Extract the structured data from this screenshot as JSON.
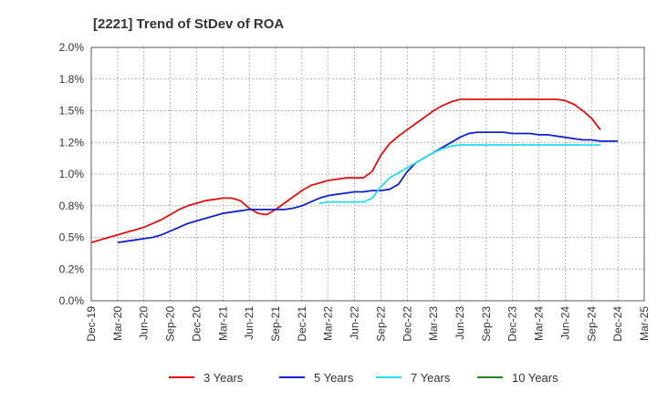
{
  "chart_data": {
    "type": "line",
    "title": "[2221]  Trend of StDev of ROA",
    "xlabel": "",
    "ylabel": "",
    "x_ticks": [
      "Dec-19",
      "Mar-20",
      "Jun-20",
      "Sep-20",
      "Dec-20",
      "Mar-21",
      "Jun-21",
      "Sep-21",
      "Dec-21",
      "Mar-22",
      "Jun-22",
      "Sep-22",
      "Dec-22",
      "Mar-23",
      "Jun-23",
      "Sep-23",
      "Dec-23",
      "Mar-24",
      "Jun-24",
      "Sep-24",
      "Dec-24",
      "Mar-25"
    ],
    "y_ticks": [
      "0.0%",
      "0.2%",
      "0.5%",
      "0.8%",
      "1.0%",
      "1.2%",
      "1.5%",
      "1.8%",
      "2.0%"
    ],
    "ylim": [
      0,
      2.0
    ],
    "grid": true,
    "legend_position": "bottom",
    "series": [
      {
        "name": "3 Years",
        "color": "#dd1111",
        "start_index": 0,
        "values": [
          0.46,
          0.48,
          0.5,
          0.52,
          0.54,
          0.56,
          0.58,
          0.61,
          0.64,
          0.68,
          0.72,
          0.75,
          0.77,
          0.79,
          0.8,
          0.81,
          0.81,
          0.79,
          0.73,
          0.69,
          0.68,
          0.72,
          0.77,
          0.82,
          0.87,
          0.91,
          0.93,
          0.95,
          0.96,
          0.97,
          0.97,
          0.97,
          1.02,
          1.15,
          1.24,
          1.3,
          1.35,
          1.4,
          1.45,
          1.5,
          1.54,
          1.57,
          1.59,
          1.59,
          1.59,
          1.59,
          1.59,
          1.59,
          1.59,
          1.59,
          1.59,
          1.59,
          1.59,
          1.59,
          1.58,
          1.55,
          1.5,
          1.44,
          1.35
        ]
      },
      {
        "name": "5 Years",
        "color": "#1122cc",
        "start_index": 3,
        "values": [
          0.46,
          0.47,
          0.48,
          0.49,
          0.5,
          0.52,
          0.55,
          0.58,
          0.61,
          0.63,
          0.65,
          0.67,
          0.69,
          0.7,
          0.71,
          0.72,
          0.72,
          0.72,
          0.72,
          0.72,
          0.73,
          0.75,
          0.78,
          0.81,
          0.83,
          0.84,
          0.85,
          0.86,
          0.86,
          0.87,
          0.87,
          0.88,
          0.92,
          1.02,
          1.09,
          1.13,
          1.17,
          1.21,
          1.25,
          1.29,
          1.32,
          1.33,
          1.33,
          1.33,
          1.33,
          1.32,
          1.32,
          1.32,
          1.31,
          1.31,
          1.3,
          1.29,
          1.28,
          1.27,
          1.27,
          1.26,
          1.26,
          1.26
        ]
      },
      {
        "name": "7 Years",
        "color": "#22ddee",
        "start_index": 26,
        "values": [
          0.77,
          0.78,
          0.78,
          0.78,
          0.78,
          0.78,
          0.81,
          0.9,
          0.97,
          1.01,
          1.05,
          1.09,
          1.13,
          1.17,
          1.2,
          1.22,
          1.23,
          1.23,
          1.23,
          1.23,
          1.23,
          1.23,
          1.23,
          1.23,
          1.23,
          1.23,
          1.23,
          1.23,
          1.23,
          1.23,
          1.23,
          1.23,
          1.23
        ]
      },
      {
        "name": "10 Years",
        "color": "#22881e",
        "start_index": 0,
        "values": []
      }
    ]
  }
}
